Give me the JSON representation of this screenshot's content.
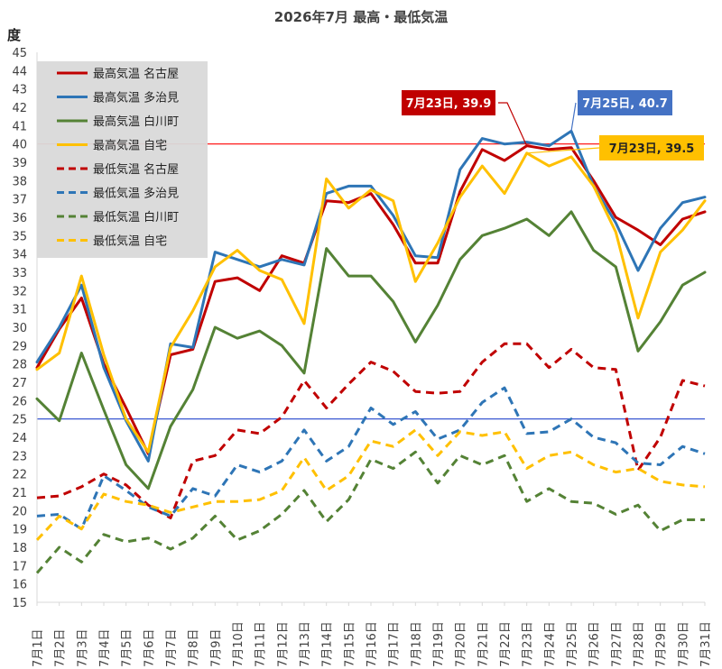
{
  "chart_data": {
    "type": "line",
    "title": "2026年7月 最高・最低気温",
    "ylabel": "度",
    "xlabel": "",
    "ylim": [
      15,
      45
    ],
    "yticks": [
      15,
      16,
      17,
      18,
      19,
      20,
      21,
      22,
      23,
      24,
      25,
      26,
      27,
      28,
      29,
      30,
      31,
      32,
      33,
      34,
      35,
      36,
      37,
      38,
      39,
      40,
      41,
      42,
      43,
      44,
      45
    ],
    "categories": [
      "7月1日",
      "7月2日",
      "7月3日",
      "7月4日",
      "7月5日",
      "7月6日",
      "7月7日",
      "7月8日",
      "7月9日",
      "7月10日",
      "7月11日",
      "7月12日",
      "7月13日",
      "7月14日",
      "7月15日",
      "7月16日",
      "7月17日",
      "7月18日",
      "7月19日",
      "7月20日",
      "7月21日",
      "7月22日",
      "7月23日",
      "7月24日",
      "7月25日",
      "7月26日",
      "7月27日",
      "7月28日",
      "7月29日",
      "7月30日",
      "7月31日"
    ],
    "grid": false,
    "legend_position": "top-left",
    "reference_lines": [
      {
        "value": 40,
        "color": "#ff0000"
      },
      {
        "value": 25,
        "color": "#2244cc"
      }
    ],
    "series": [
      {
        "name": "最高気温 名古屋",
        "color": "#c00000",
        "dash": false,
        "values": [
          27.8,
          29.9,
          31.6,
          28.0,
          25.6,
          23.1,
          28.5,
          28.8,
          32.5,
          32.7,
          32.0,
          33.9,
          33.5,
          36.9,
          36.8,
          37.3,
          35.6,
          33.5,
          33.5,
          37.4,
          39.7,
          39.1,
          39.9,
          39.7,
          39.8,
          38.0,
          36.0,
          35.3,
          34.5,
          35.9,
          36.3
        ]
      },
      {
        "name": "最高気温 多治見",
        "color": "#2e75b6",
        "dash": false,
        "values": [
          28.1,
          30.0,
          32.3,
          27.8,
          24.9,
          22.7,
          29.1,
          28.9,
          34.1,
          33.7,
          33.3,
          33.7,
          33.4,
          37.3,
          37.7,
          37.7,
          36.1,
          33.9,
          33.8,
          38.6,
          40.3,
          40.0,
          40.1,
          39.9,
          40.7,
          37.7,
          35.7,
          33.1,
          35.4,
          36.8,
          37.1
        ]
      },
      {
        "name": "最高気温 白川町",
        "color": "#548235",
        "dash": false,
        "values": [
          26.1,
          24.9,
          28.6,
          25.5,
          22.5,
          21.2,
          24.6,
          26.6,
          30.0,
          29.4,
          29.8,
          29.0,
          27.5,
          34.3,
          32.8,
          32.8,
          31.4,
          29.2,
          31.2,
          33.7,
          35.0,
          35.4,
          35.9,
          35.0,
          36.3,
          34.2,
          33.3,
          28.7,
          30.3,
          32.3,
          33.0
        ]
      },
      {
        "name": "最高気温 自宅",
        "color": "#ffc000",
        "dash": false,
        "values": [
          27.7,
          28.6,
          32.8,
          28.5,
          25.0,
          23.2,
          28.9,
          30.9,
          33.3,
          34.2,
          33.1,
          32.6,
          30.2,
          38.1,
          36.5,
          37.5,
          36.9,
          32.5,
          34.6,
          37.1,
          38.8,
          37.3,
          39.5,
          38.8,
          39.3,
          37.7,
          35.2,
          30.5,
          34.1,
          35.3,
          36.9
        ]
      },
      {
        "name": "最低気温 名古屋",
        "color": "#c00000",
        "dash": true,
        "values": [
          20.7,
          20.8,
          21.3,
          22.0,
          21.4,
          20.3,
          19.6,
          22.7,
          23.0,
          24.4,
          24.2,
          25.1,
          27.1,
          25.6,
          26.9,
          28.1,
          27.6,
          26.5,
          26.4,
          26.5,
          28.1,
          29.1,
          29.1,
          27.8,
          28.8,
          27.8,
          27.7,
          22.2,
          24.0,
          27.1,
          26.8
        ]
      },
      {
        "name": "最低気温 多治見",
        "color": "#2e75b6",
        "dash": true,
        "values": [
          19.7,
          19.8,
          19.0,
          21.9,
          21.1,
          20.2,
          19.7,
          21.2,
          20.8,
          22.5,
          22.1,
          22.7,
          24.4,
          22.7,
          23.5,
          25.6,
          24.7,
          25.4,
          23.9,
          24.4,
          25.9,
          26.7,
          24.2,
          24.3,
          25.0,
          24.0,
          23.7,
          22.6,
          22.5,
          23.5,
          23.1
        ]
      },
      {
        "name": "最低気温 白川町",
        "color": "#548235",
        "dash": true,
        "values": [
          16.6,
          18.0,
          17.2,
          18.7,
          18.3,
          18.5,
          17.9,
          18.5,
          19.7,
          18.4,
          18.9,
          19.8,
          21.1,
          19.4,
          20.6,
          22.8,
          22.3,
          23.2,
          21.5,
          23.0,
          22.5,
          23.0,
          20.5,
          21.2,
          20.5,
          20.4,
          19.8,
          20.3,
          18.9,
          19.5,
          19.5
        ]
      },
      {
        "name": "最低気温 自宅",
        "color": "#ffc000",
        "dash": true,
        "values": [
          18.4,
          19.7,
          19.0,
          20.9,
          20.5,
          20.3,
          19.9,
          20.2,
          20.5,
          20.5,
          20.6,
          21.1,
          22.9,
          21.1,
          21.9,
          23.8,
          23.5,
          24.4,
          23.0,
          24.3,
          24.1,
          24.3,
          22.3,
          23.0,
          23.2,
          22.5,
          22.1,
          22.3,
          21.6,
          21.4,
          21.3
        ]
      }
    ],
    "annotations": [
      {
        "text": "7月23日, 39.9",
        "x": "7月23日",
        "y": 39.9,
        "color": "#c00000",
        "text_color": "#ffffff"
      },
      {
        "text": "7月25日, 40.7",
        "x": "7月25日",
        "y": 40.7,
        "color": "#4472c4",
        "text_color": "#ffffff"
      },
      {
        "text": "7月23日, 39.5",
        "x": "7月23日",
        "y": 39.5,
        "color": "#ffc000",
        "text_color": "#222222"
      }
    ]
  }
}
